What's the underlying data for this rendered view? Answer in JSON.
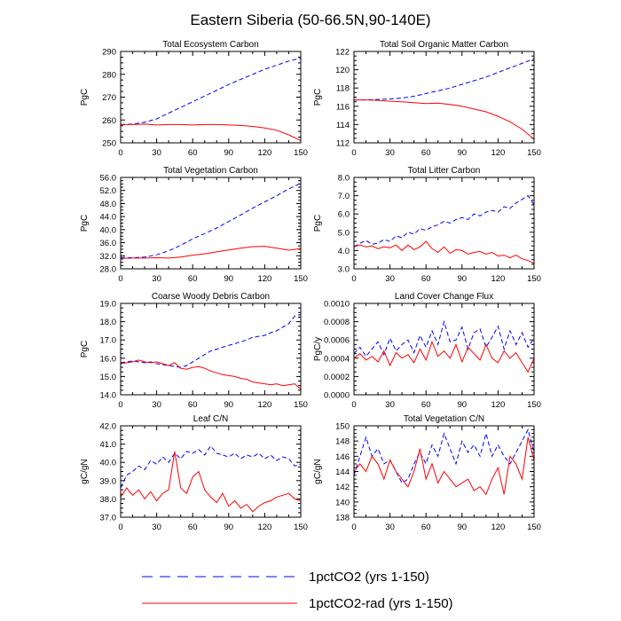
{
  "title": "Eastern Siberia (50-66.5N,90-140E)",
  "colors": {
    "co2": "#0000ff",
    "rad": "#ff0000"
  },
  "legend": [
    {
      "label": "1pctCO2 (yrs 1-150)",
      "style": "dashed",
      "color": "#0000ff"
    },
    {
      "label": "1pctCO2-rad (yrs 1-150)",
      "style": "solid",
      "color": "#ff0000"
    }
  ],
  "chart_data": [
    {
      "type": "line",
      "title": "Total Ecosystem Carbon",
      "ylabel": "PgC",
      "xlim": [
        0,
        150
      ],
      "xticks": [
        0,
        30,
        60,
        90,
        120,
        150
      ],
      "ylim": [
        250,
        290
      ],
      "yticks": [
        "250",
        "260",
        "270",
        "280",
        "290"
      ],
      "x": [
        0,
        10,
        20,
        30,
        40,
        50,
        60,
        70,
        80,
        90,
        100,
        110,
        120,
        130,
        140,
        150
      ],
      "series": [
        {
          "name": "1pctCO2 (yrs 1-150)",
          "style": "dashed",
          "values": [
            258,
            258.2,
            259,
            260.5,
            263,
            265.5,
            268,
            270.5,
            273,
            275.5,
            277.8,
            280,
            282.2,
            284,
            285.8,
            287
          ]
        },
        {
          "name": "1pctCO2-rad (yrs 1-150)",
          "style": "solid",
          "values": [
            258,
            258,
            258.2,
            257.8,
            258,
            258,
            257.8,
            258,
            258,
            257.8,
            257.6,
            257.2,
            256.5,
            255.5,
            253.5,
            251
          ]
        }
      ]
    },
    {
      "type": "line",
      "title": "Total Soil Organic Matter Carbon",
      "ylabel": "PgC",
      "xlim": [
        0,
        150
      ],
      "xticks": [
        0,
        30,
        60,
        90,
        120,
        150
      ],
      "ylim": [
        112,
        122
      ],
      "yticks": [
        "112",
        "114",
        "116",
        "118",
        "120",
        "122"
      ],
      "x": [
        0,
        10,
        20,
        30,
        40,
        50,
        60,
        70,
        80,
        90,
        100,
        110,
        120,
        130,
        140,
        150
      ],
      "series": [
        {
          "name": "1pctCO2 (yrs 1-150)",
          "style": "dashed",
          "values": [
            116.7,
            116.7,
            116.75,
            116.8,
            116.9,
            117.1,
            117.4,
            117.7,
            118,
            118.4,
            118.8,
            119.2,
            119.7,
            120.2,
            120.7,
            121.2
          ]
        },
        {
          "name": "1pctCO2-rad (yrs 1-150)",
          "style": "solid",
          "values": [
            116.7,
            116.7,
            116.65,
            116.55,
            116.5,
            116.4,
            116.3,
            116.35,
            116.2,
            116,
            115.7,
            115.4,
            114.9,
            114.3,
            113.5,
            112.4
          ]
        }
      ]
    },
    {
      "type": "line",
      "title": "Total Vegetation Carbon",
      "ylabel": "PgC",
      "xlim": [
        0,
        150
      ],
      "xticks": [
        0,
        30,
        60,
        90,
        120,
        150
      ],
      "ylim": [
        28,
        56
      ],
      "yticks": [
        "28.0",
        "32.0",
        "36.0",
        "40.0",
        "44.0",
        "48.0",
        "52.0",
        "56.0"
      ],
      "x": [
        0,
        10,
        20,
        30,
        40,
        50,
        60,
        70,
        80,
        90,
        100,
        110,
        120,
        130,
        140,
        150
      ],
      "series": [
        {
          "name": "1pctCO2 (yrs 1-150)",
          "style": "dashed",
          "values": [
            31.5,
            31.4,
            31.6,
            32.3,
            33.5,
            35.2,
            37.2,
            38.8,
            40.5,
            42.5,
            44.5,
            46.6,
            48.5,
            50.4,
            52.5,
            54.2
          ]
        },
        {
          "name": "1pctCO2-rad (yrs 1-150)",
          "style": "solid",
          "values": [
            31.2,
            31.3,
            31.3,
            31.4,
            31.3,
            31.6,
            32.2,
            32.6,
            33.2,
            33.8,
            34.3,
            34.8,
            34.9,
            34.3,
            33.7,
            34.2
          ]
        }
      ]
    },
    {
      "type": "line",
      "title": "Total Litter Carbon",
      "ylabel": "PgC",
      "xlim": [
        0,
        150
      ],
      "xticks": [
        0,
        30,
        60,
        90,
        120,
        150
      ],
      "ylim": [
        3,
        8
      ],
      "yticks": [
        "3.0",
        "4.0",
        "5.0",
        "6.0",
        "7.0",
        "8.0"
      ],
      "x": [
        0,
        5,
        10,
        15,
        20,
        25,
        30,
        35,
        40,
        45,
        50,
        55,
        60,
        65,
        70,
        75,
        80,
        85,
        90,
        95,
        100,
        105,
        110,
        115,
        120,
        125,
        130,
        135,
        140,
        145,
        150
      ],
      "series": [
        {
          "name": "1pctCO2 (yrs 1-150)",
          "style": "dashed",
          "values": [
            4.2,
            4.4,
            4.55,
            4.35,
            4.4,
            4.6,
            4.5,
            4.8,
            4.7,
            5.0,
            4.9,
            5.2,
            5.1,
            5.3,
            5.4,
            5.6,
            5.5,
            5.7,
            5.8,
            5.7,
            6.0,
            5.9,
            6.1,
            6.2,
            6.1,
            6.4,
            6.3,
            6.6,
            6.8,
            7.0,
            6.5
          ]
        },
        {
          "name": "1pctCO2-rad (yrs 1-150)",
          "style": "solid",
          "values": [
            4.2,
            4.3,
            4.2,
            4.25,
            4.1,
            4.2,
            4.15,
            4.3,
            4.0,
            4.3,
            4.05,
            4.2,
            4.5,
            4.1,
            3.9,
            4.2,
            3.85,
            4.05,
            4.0,
            3.8,
            3.9,
            3.95,
            3.8,
            3.9,
            3.7,
            3.75,
            3.6,
            3.75,
            3.55,
            3.45,
            3.3
          ]
        }
      ]
    },
    {
      "type": "line",
      "title": "Coarse Woody Debris Carbon",
      "ylabel": "PgC",
      "xlim": [
        0,
        150
      ],
      "xticks": [
        0,
        30,
        60,
        90,
        120,
        150
      ],
      "ylim": [
        14,
        19
      ],
      "yticks": [
        "14.0",
        "15.0",
        "16.0",
        "17.0",
        "18.0",
        "19.0"
      ],
      "x": [
        0,
        5,
        10,
        15,
        20,
        25,
        30,
        35,
        40,
        45,
        50,
        55,
        60,
        65,
        70,
        75,
        80,
        85,
        90,
        95,
        100,
        105,
        110,
        115,
        120,
        125,
        130,
        135,
        140,
        145,
        150
      ],
      "series": [
        {
          "name": "1pctCO2 (yrs 1-150)",
          "style": "dashed",
          "values": [
            15.75,
            15.8,
            15.85,
            15.8,
            15.75,
            15.8,
            15.7,
            15.65,
            15.6,
            15.55,
            15.5,
            15.6,
            15.8,
            16.0,
            16.2,
            16.4,
            16.5,
            16.6,
            16.7,
            16.8,
            16.9,
            17.0,
            17.15,
            17.2,
            17.25,
            17.4,
            17.5,
            17.7,
            17.9,
            18.3,
            18.4
          ]
        },
        {
          "name": "1pctCO2-rad (yrs 1-150)",
          "style": "solid",
          "values": [
            15.7,
            15.75,
            15.8,
            15.9,
            15.8,
            15.75,
            15.8,
            15.7,
            15.6,
            15.75,
            15.45,
            15.4,
            15.5,
            15.55,
            15.45,
            15.3,
            15.2,
            15.1,
            15.05,
            15.0,
            14.9,
            14.85,
            14.7,
            14.65,
            14.6,
            14.55,
            14.6,
            14.5,
            14.55,
            14.6,
            14.3
          ]
        }
      ]
    },
    {
      "type": "line",
      "title": "Land Cover Change Flux",
      "ylabel": "PgC/y",
      "xlim": [
        0,
        150
      ],
      "xticks": [
        0,
        30,
        60,
        90,
        120,
        150
      ],
      "ylim": [
        0,
        0.001
      ],
      "yticks": [
        "0.0000",
        "0.0002",
        "0.0004",
        "0.0006",
        "0.0008",
        "0.0010"
      ],
      "x": [
        0,
        5,
        10,
        15,
        20,
        25,
        30,
        35,
        40,
        45,
        50,
        55,
        60,
        65,
        70,
        75,
        80,
        85,
        90,
        95,
        100,
        105,
        110,
        115,
        120,
        125,
        130,
        135,
        140,
        145,
        150
      ],
      "series": [
        {
          "name": "1pctCO2 (yrs 1-150)",
          "style": "dashed",
          "values": [
            0.00045,
            0.00052,
            0.00042,
            0.0005,
            0.00058,
            0.00044,
            0.00062,
            0.00048,
            0.00055,
            0.0006,
            0.00046,
            0.00065,
            0.00052,
            0.0007,
            0.00055,
            0.0008,
            0.00058,
            0.0006,
            0.00074,
            0.0005,
            0.00068,
            0.00072,
            0.00052,
            0.00063,
            0.00075,
            0.0005,
            0.0007,
            0.00055,
            0.00068,
            0.00052,
            0.00062
          ]
        },
        {
          "name": "1pctCO2-rad (yrs 1-150)",
          "style": "solid",
          "values": [
            0.0004,
            0.00045,
            0.00038,
            0.00042,
            0.00036,
            0.00048,
            0.00032,
            0.00046,
            0.0004,
            0.00044,
            0.00035,
            0.0005,
            0.00038,
            0.00058,
            0.00042,
            0.00048,
            0.0004,
            0.00055,
            0.00036,
            0.00052,
            0.00045,
            0.00038,
            0.00055,
            0.0004,
            0.00035,
            0.00048,
            0.0004,
            0.00046,
            0.00035,
            0.00025,
            0.0004
          ]
        }
      ]
    },
    {
      "type": "line",
      "title": "Leaf C/N",
      "ylabel": "gC/gN",
      "xlim": [
        0,
        150
      ],
      "xticks": [
        0,
        30,
        60,
        90,
        120,
        150
      ],
      "ylim": [
        37,
        42
      ],
      "yticks": [
        "37.0",
        "38.0",
        "39.0",
        "40.0",
        "41.0",
        "42.0"
      ],
      "x": [
        0,
        5,
        10,
        15,
        20,
        25,
        30,
        35,
        40,
        45,
        50,
        55,
        60,
        65,
        70,
        75,
        80,
        85,
        90,
        95,
        100,
        105,
        110,
        115,
        120,
        125,
        130,
        135,
        140,
        145,
        150
      ],
      "series": [
        {
          "name": "1pctCO2 (yrs 1-150)",
          "style": "dashed",
          "values": [
            38.6,
            39.3,
            39.5,
            39.8,
            39.6,
            40.1,
            39.9,
            40.3,
            40.0,
            40.5,
            40.2,
            40.6,
            40.5,
            40.7,
            40.4,
            40.9,
            40.5,
            40.4,
            40.3,
            40.5,
            40.2,
            40.4,
            40.3,
            40.5,
            40.2,
            40.4,
            40.1,
            40.3,
            40.2,
            39.8,
            39.9
          ]
        },
        {
          "name": "1pctCO2-rad (yrs 1-150)",
          "style": "solid",
          "values": [
            38.1,
            38.6,
            38.2,
            38.5,
            38.0,
            38.4,
            37.9,
            38.3,
            38.5,
            40.6,
            38.6,
            38.3,
            39.2,
            39.5,
            38.5,
            38.1,
            37.8,
            38.3,
            37.6,
            37.9,
            37.5,
            37.7,
            37.3,
            37.6,
            37.8,
            37.9,
            38.1,
            38.2,
            38.3,
            38.0,
            37.9
          ]
        }
      ]
    },
    {
      "type": "line",
      "title": "Total Vegetation C/N",
      "ylabel": "gC/gN",
      "xlim": [
        0,
        150
      ],
      "xticks": [
        0,
        30,
        60,
        90,
        120,
        150
      ],
      "ylim": [
        138,
        150
      ],
      "yticks": [
        "138",
        "140",
        "142",
        "144",
        "146",
        "148",
        "150"
      ],
      "x": [
        0,
        5,
        10,
        15,
        20,
        25,
        30,
        35,
        40,
        45,
        50,
        55,
        60,
        65,
        70,
        75,
        80,
        85,
        90,
        95,
        100,
        105,
        110,
        115,
        120,
        125,
        130,
        135,
        140,
        145,
        150
      ],
      "series": [
        {
          "name": "1pctCO2 (yrs 1-150)",
          "style": "dashed",
          "values": [
            143.5,
            146,
            148.5,
            146,
            147,
            145,
            145.5,
            144,
            142.5,
            143,
            145,
            146.5,
            145,
            147.5,
            146,
            149,
            147,
            145,
            148,
            146.5,
            147.5,
            146,
            149,
            146,
            147.5,
            146,
            145,
            146.5,
            148,
            149.5,
            146.5
          ]
        },
        {
          "name": "1pctCO2-rad (yrs 1-150)",
          "style": "solid",
          "values": [
            144,
            145,
            144,
            146,
            145,
            143,
            145.5,
            144,
            143,
            142,
            144,
            147,
            143,
            145,
            142.5,
            144,
            143,
            142,
            142.5,
            143,
            141.5,
            142,
            141,
            143,
            144.5,
            141,
            146,
            145,
            143,
            148.5,
            145.5
          ]
        }
      ]
    }
  ]
}
